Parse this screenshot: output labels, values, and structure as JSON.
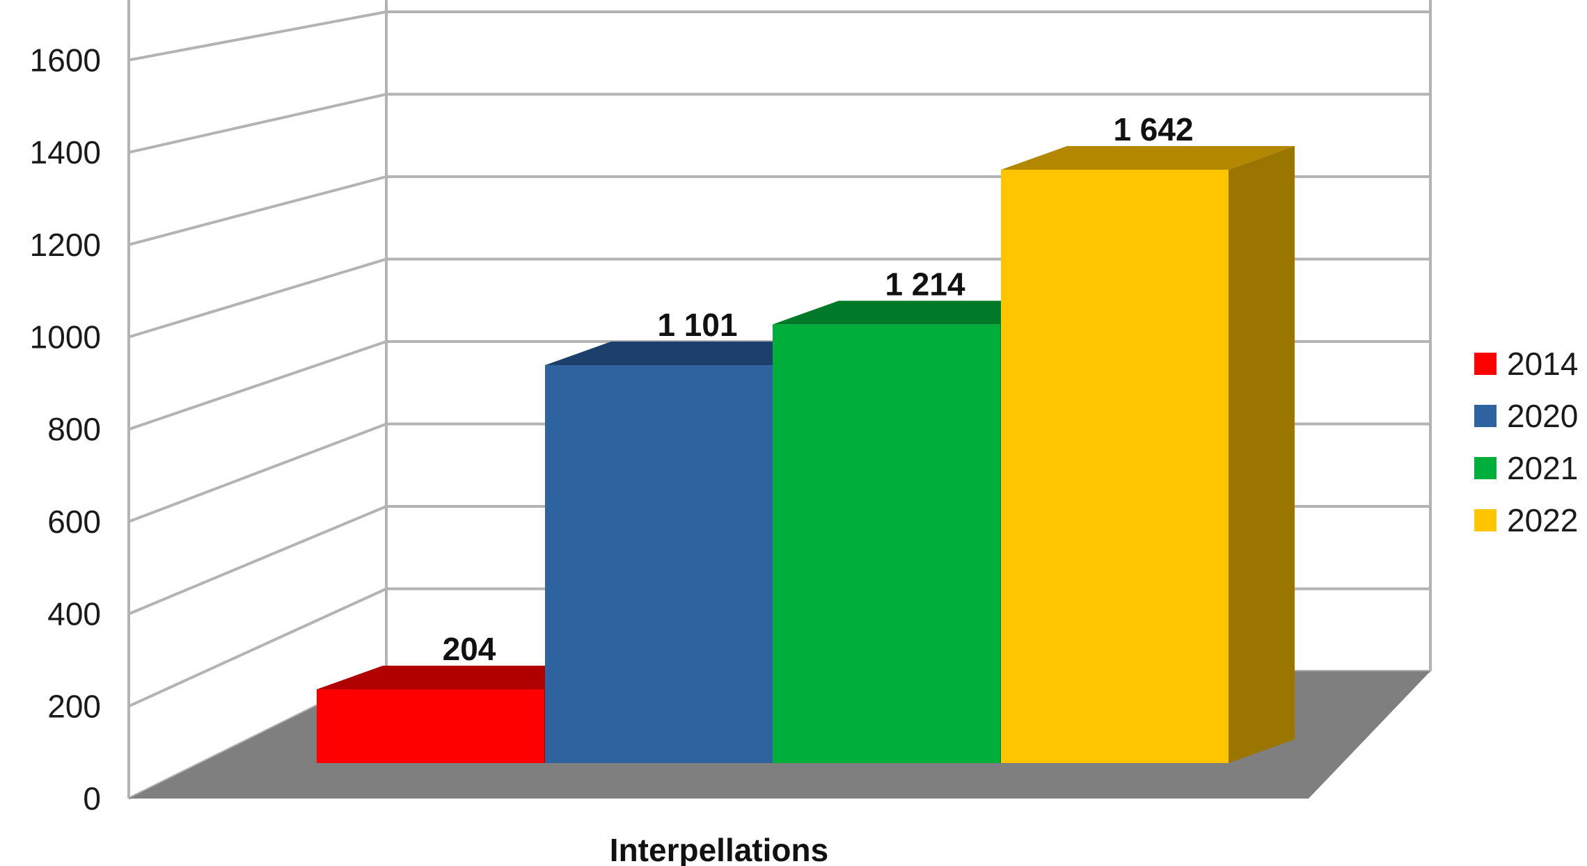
{
  "chart_data": {
    "type": "bar",
    "style": "3d-column",
    "categories": [
      "Interpellations"
    ],
    "xlabel": "Interpellations",
    "ylabel": "",
    "title": "",
    "ylim": [
      0,
      1800
    ],
    "yticks": [
      0,
      200,
      400,
      600,
      800,
      1000,
      1200,
      1400,
      1600,
      1800
    ],
    "grid": true,
    "legend_position": "right",
    "series": [
      {
        "name": "2014",
        "value": 204,
        "label": "204",
        "color": "#ff0000",
        "top_color": "#b00000",
        "side_color": "#a00000"
      },
      {
        "name": "2020",
        "value": 1101,
        "label": "1 101",
        "color": "#2e63a0",
        "top_color": "#1d3f6b",
        "side_color": "#1f4473"
      },
      {
        "name": "2021",
        "value": 1214,
        "label": "1 214",
        "color": "#00ae3b",
        "top_color": "#007a28",
        "side_color": "#00782a"
      },
      {
        "name": "2022",
        "value": 1642,
        "label": "1 642",
        "color": "#ffc600",
        "top_color": "#b38800",
        "side_color": "#9a7600"
      }
    ],
    "floor_color": "#7f7f7f",
    "gridline_color": "#b3b3b3"
  }
}
